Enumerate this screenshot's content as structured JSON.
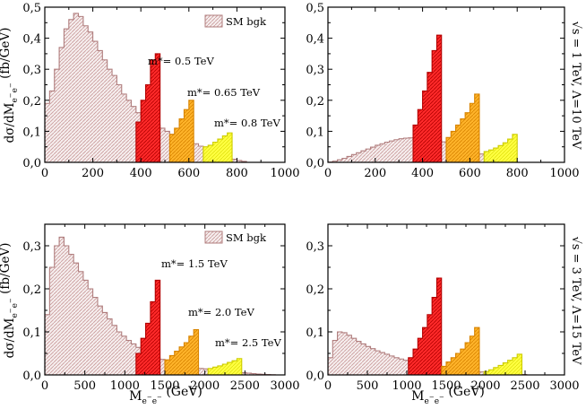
{
  "colors": {
    "bg_fill": "#f4ecec",
    "bg_stroke": "#b07e7e",
    "bg_hatch": "#c89a9a",
    "sig1": "#ff1a1a",
    "sig1_stroke": "#b30000",
    "sig2": "#ffb020",
    "sig2_stroke": "#d88400",
    "sig3": "#ffff3a",
    "sig3_stroke": "#cccc00"
  },
  "labels": {
    "ylabel": "dσ/dM_{e⁻e⁻} (fb/GeV)",
    "xlabel": "M_{e⁻e⁻} (GeV)",
    "legend": "SM bgk",
    "side_top": "√s = 1 TeV, Λ=10 TeV",
    "side_bottom": "√s = 3 TeV, Λ=15 TeV"
  },
  "chart_data": [
    {
      "type": "histogram-step",
      "panel": "top-left",
      "xlim": [
        0,
        1000
      ],
      "ylim": [
        0,
        0.5
      ],
      "xticks": [
        "0",
        "200",
        "400",
        "600",
        "800",
        "1000"
      ],
      "yticks": [
        "0,0",
        "0,1",
        "0,2",
        "0,3",
        "0,4",
        "0,5"
      ],
      "ylabel": "dσ/dM_{e⁻e⁻} (fb/GeV)",
      "legend": "SM bgk",
      "background": {
        "bin": 20,
        "x0": 0,
        "values": [
          0.19,
          0.23,
          0.3,
          0.37,
          0.43,
          0.46,
          0.48,
          0.47,
          0.44,
          0.42,
          0.39,
          0.36,
          0.33,
          0.3,
          0.28,
          0.25,
          0.22,
          0.2,
          0.18,
          0.16,
          0.15,
          0.14,
          0.13,
          0.12,
          0.11,
          0.1,
          0.09,
          0.085,
          0.08,
          0.075,
          0.068,
          0.06,
          0.052,
          0.045,
          0.038,
          0.032,
          0.026,
          0.02,
          0.014,
          0.01,
          0.006,
          0.003,
          0.0
        ]
      },
      "signals": [
        {
          "name": "m*= 0.5 TeV",
          "x": [
            380,
            400,
            420,
            440,
            460
          ],
          "y": [
            0.13,
            0.2,
            0.25,
            0.33,
            0.35
          ],
          "end": 480,
          "color": "sig1"
        },
        {
          "name": "m*= 0.65 TeV",
          "x": [
            520,
            540,
            560,
            580,
            600
          ],
          "y": [
            0.09,
            0.11,
            0.14,
            0.17,
            0.2
          ],
          "end": 620,
          "color": "sig2"
        },
        {
          "name": "m*= 0.8 TeV",
          "x": [
            660,
            680,
            700,
            720,
            740,
            760
          ],
          "y": [
            0.05,
            0.055,
            0.065,
            0.075,
            0.085,
            0.095
          ],
          "end": 780,
          "color": "sig3"
        }
      ]
    },
    {
      "type": "histogram-step",
      "panel": "top-right",
      "xlim": [
        0,
        1000
      ],
      "ylim": [
        0,
        0.5
      ],
      "xticks": [
        "0",
        "200",
        "400",
        "600",
        "800",
        "1000"
      ],
      "yticks": [
        "0,0",
        "0,1",
        "0,2",
        "0,3",
        "0,4",
        "0,5"
      ],
      "background": {
        "bin": 20,
        "x0": 0,
        "values": [
          0.001,
          0.004,
          0.008,
          0.013,
          0.019,
          0.025,
          0.031,
          0.037,
          0.043,
          0.049,
          0.055,
          0.06,
          0.065,
          0.069,
          0.073,
          0.076,
          0.078,
          0.079,
          0.08,
          0.08,
          0.079,
          0.077,
          0.074,
          0.07,
          0.066,
          0.062,
          0.057,
          0.052,
          0.047,
          0.042,
          0.037,
          0.032,
          0.027,
          0.022,
          0.017,
          0.012,
          0.008,
          0.004,
          0.002,
          0.001
        ]
      },
      "signals": [
        {
          "name": "",
          "x": [
            360,
            380,
            400,
            420,
            440,
            460
          ],
          "y": [
            0.12,
            0.17,
            0.23,
            0.29,
            0.36,
            0.41
          ],
          "end": 480,
          "color": "sig1"
        },
        {
          "name": "",
          "x": [
            500,
            520,
            540,
            560,
            580,
            600,
            620
          ],
          "y": [
            0.08,
            0.1,
            0.12,
            0.14,
            0.16,
            0.19,
            0.22
          ],
          "end": 640,
          "color": "sig2"
        },
        {
          "name": "",
          "x": [
            660,
            680,
            700,
            720,
            740,
            760,
            780
          ],
          "y": [
            0.035,
            0.04,
            0.046,
            0.054,
            0.063,
            0.075,
            0.09
          ],
          "end": 800,
          "color": "sig3"
        }
      ]
    },
    {
      "type": "histogram-step",
      "panel": "bottom-left",
      "xlim": [
        0,
        3000
      ],
      "ylim": [
        0,
        0.35
      ],
      "xticks": [
        "0",
        "500",
        "1000",
        "1500",
        "2000",
        "2500",
        "3000"
      ],
      "yticks": [
        "0,0",
        "0,1",
        "0,2",
        "0,3"
      ],
      "ylabel": "dσ/dM_{e⁻e⁻} (fb/GeV)",
      "xlabel": "M_{e⁻e⁻} (GeV)",
      "legend": "SM bgk",
      "background": {
        "bin": 60,
        "x0": 0,
        "values": [
          0.14,
          0.25,
          0.3,
          0.32,
          0.3,
          0.28,
          0.26,
          0.24,
          0.22,
          0.2,
          0.18,
          0.16,
          0.145,
          0.13,
          0.115,
          0.1,
          0.09,
          0.08,
          0.072,
          0.064,
          0.057,
          0.05,
          0.045,
          0.04,
          0.036,
          0.032,
          0.029,
          0.026,
          0.023,
          0.021,
          0.019,
          0.017,
          0.015,
          0.014,
          0.012,
          0.011,
          0.01,
          0.009,
          0.008,
          0.007,
          0.006,
          0.005,
          0.004,
          0.003,
          0.002,
          0.0015,
          0.001,
          0.0005
        ]
      },
      "signals": [
        {
          "name": "m*= 1.5 TeV",
          "x": [
            1140,
            1200,
            1260,
            1320,
            1380
          ],
          "y": [
            0.05,
            0.085,
            0.12,
            0.17,
            0.22
          ],
          "end": 1440,
          "color": "sig1"
        },
        {
          "name": "m*= 2.0 TeV",
          "x": [
            1500,
            1560,
            1620,
            1680,
            1740,
            1800,
            1860
          ],
          "y": [
            0.035,
            0.045,
            0.055,
            0.065,
            0.075,
            0.09,
            0.105
          ],
          "end": 1920,
          "color": "sig2"
        },
        {
          "name": "m*= 2.5 TeV",
          "x": [
            2040,
            2100,
            2160,
            2220,
            2280,
            2340,
            2400
          ],
          "y": [
            0.015,
            0.018,
            0.021,
            0.025,
            0.029,
            0.033,
            0.038
          ],
          "end": 2460,
          "color": "sig3"
        }
      ]
    },
    {
      "type": "histogram-step",
      "panel": "bottom-right",
      "xlim": [
        0,
        3000
      ],
      "ylim": [
        0,
        0.35
      ],
      "xticks": [
        "0",
        "500",
        "1000",
        "1500",
        "2000",
        "2500",
        "3000"
      ],
      "yticks": [
        "0,0",
        "0,1",
        "0,2",
        "0,3"
      ],
      "xlabel": "M_{e⁻e⁻} (GeV)",
      "background": {
        "bin": 60,
        "x0": 0,
        "values": [
          0.04,
          0.08,
          0.1,
          0.098,
          0.092,
          0.085,
          0.078,
          0.072,
          0.066,
          0.061,
          0.056,
          0.052,
          0.048,
          0.044,
          0.04,
          0.037,
          0.034,
          0.031,
          0.028,
          0.026,
          0.024,
          0.022,
          0.02,
          0.018,
          0.016,
          0.015,
          0.013,
          0.012,
          0.011,
          0.01,
          0.009,
          0.008,
          0.007,
          0.006,
          0.005,
          0.004,
          0.0035,
          0.003,
          0.0025,
          0.002,
          0.0015,
          0.001
        ]
      },
      "signals": [
        {
          "name": "",
          "x": [
            1020,
            1080,
            1140,
            1200,
            1260,
            1320,
            1380
          ],
          "y": [
            0.04,
            0.06,
            0.085,
            0.11,
            0.14,
            0.18,
            0.225
          ],
          "end": 1440,
          "color": "sig1"
        },
        {
          "name": "",
          "x": [
            1440,
            1500,
            1560,
            1620,
            1680,
            1740,
            1800,
            1860
          ],
          "y": [
            0.02,
            0.03,
            0.04,
            0.05,
            0.06,
            0.075,
            0.09,
            0.11
          ],
          "end": 1920,
          "color": "sig2"
        },
        {
          "name": "",
          "x": [
            1980,
            2040,
            2100,
            2160,
            2220,
            2280,
            2340,
            2400
          ],
          "y": [
            0.008,
            0.012,
            0.017,
            0.022,
            0.028,
            0.034,
            0.04,
            0.048
          ],
          "end": 2460,
          "color": "sig3"
        }
      ]
    }
  ]
}
